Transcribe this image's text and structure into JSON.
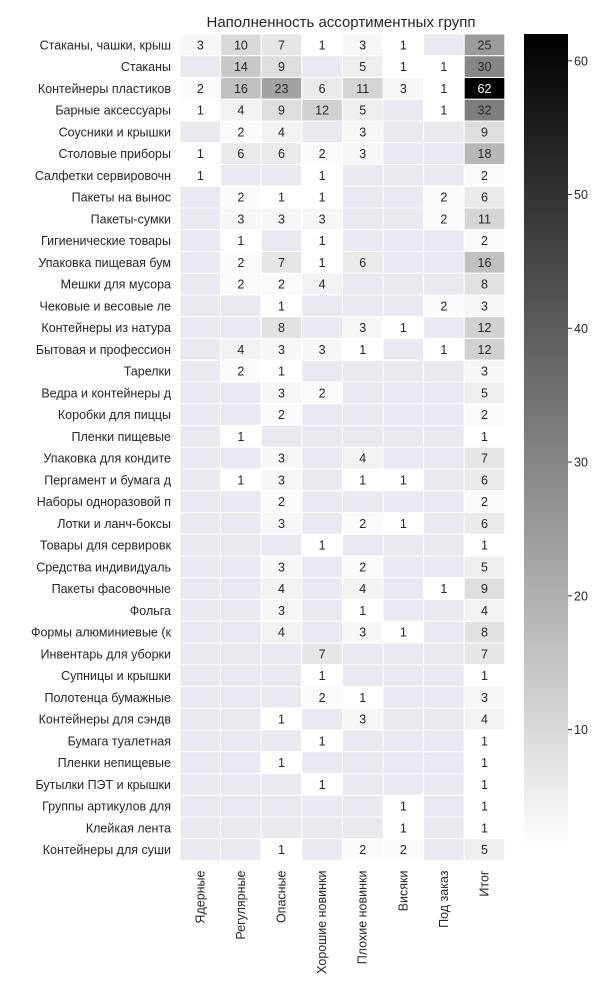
{
  "chart_data": {
    "type": "heatmap",
    "title": "Наполненность ассортиментных групп",
    "columns": [
      "Ядерные",
      "Регулярные",
      "Опасные",
      "Хорошие новинки",
      "Плохие новинки",
      "Висяки",
      "Под заказ",
      "Итог"
    ],
    "rows": [
      "Стаканы, чашки, крыш",
      "Стаканы",
      "Контейнеры пластиков",
      "Барные аксессуары",
      "Соусники и крышки",
      "Столовые приборы",
      "Салфетки сервировочн",
      "Пакеты на вынос",
      "Пакеты-сумки",
      "Гигиенические товары",
      "Упаковка пищевая бум",
      "Мешки для мусора",
      "Чековые и весовые ле",
      "Контейнеры из натура",
      "Бытовая и профессион",
      "Тарелки",
      "Ведра и контейнеры д",
      "Коробки для пиццы",
      "Пленки пищевые",
      "Упаковка для кондите",
      "Пергамент и бумага д",
      "Наборы одноразовой п",
      "Лотки и ланч-боксы",
      "Товары для сервировк",
      "Средства индивидуаль",
      "Пакеты фасовочные",
      "Фольга",
      "Формы алюминиевые (к",
      "Инвентарь для уборки",
      "Супницы и крышки",
      "Полотенца бумажные",
      "Контейнеры для сэндв",
      "Бумага туалетная",
      "Пленки непищевые",
      "Бутылки ПЭТ и крышки",
      "Группы артикулов для",
      "Клейкая лента",
      "Контейнеры для суши"
    ],
    "values": [
      [
        3,
        10,
        7,
        1,
        3,
        1,
        null,
        25
      ],
      [
        null,
        14,
        9,
        null,
        5,
        1,
        1,
        30
      ],
      [
        2,
        16,
        23,
        6,
        11,
        3,
        1,
        62
      ],
      [
        1,
        4,
        9,
        12,
        5,
        null,
        1,
        32
      ],
      [
        null,
        2,
        4,
        null,
        3,
        null,
        null,
        9
      ],
      [
        1,
        6,
        6,
        2,
        3,
        null,
        null,
        18
      ],
      [
        1,
        null,
        null,
        1,
        null,
        null,
        null,
        2
      ],
      [
        null,
        2,
        1,
        1,
        null,
        null,
        2,
        6
      ],
      [
        null,
        3,
        3,
        3,
        null,
        null,
        2,
        11
      ],
      [
        null,
        1,
        null,
        1,
        null,
        null,
        null,
        2
      ],
      [
        null,
        2,
        7,
        1,
        6,
        null,
        null,
        16
      ],
      [
        null,
        2,
        2,
        4,
        null,
        null,
        null,
        8
      ],
      [
        null,
        null,
        1,
        null,
        null,
        null,
        2,
        3
      ],
      [
        null,
        null,
        8,
        null,
        3,
        1,
        null,
        12
      ],
      [
        null,
        4,
        3,
        3,
        1,
        null,
        1,
        12
      ],
      [
        null,
        2,
        1,
        null,
        null,
        null,
        null,
        3
      ],
      [
        null,
        null,
        3,
        2,
        null,
        null,
        null,
        5
      ],
      [
        null,
        null,
        2,
        null,
        null,
        null,
        null,
        2
      ],
      [
        null,
        1,
        null,
        null,
        null,
        null,
        null,
        1
      ],
      [
        null,
        null,
        3,
        null,
        4,
        null,
        null,
        7
      ],
      [
        null,
        1,
        3,
        null,
        1,
        1,
        null,
        6
      ],
      [
        null,
        null,
        2,
        null,
        null,
        null,
        null,
        2
      ],
      [
        null,
        null,
        3,
        null,
        2,
        1,
        null,
        6
      ],
      [
        null,
        null,
        null,
        1,
        null,
        null,
        null,
        1
      ],
      [
        null,
        null,
        3,
        null,
        2,
        null,
        null,
        5
      ],
      [
        null,
        null,
        4,
        null,
        4,
        null,
        1,
        9
      ],
      [
        null,
        null,
        3,
        null,
        1,
        null,
        null,
        4
      ],
      [
        null,
        null,
        4,
        null,
        3,
        1,
        null,
        8
      ],
      [
        null,
        null,
        null,
        7,
        null,
        null,
        null,
        7
      ],
      [
        null,
        null,
        null,
        1,
        null,
        null,
        null,
        1
      ],
      [
        null,
        null,
        null,
        2,
        1,
        null,
        null,
        3
      ],
      [
        null,
        null,
        1,
        null,
        3,
        null,
        null,
        4
      ],
      [
        null,
        null,
        null,
        1,
        null,
        null,
        null,
        1
      ],
      [
        null,
        null,
        1,
        null,
        null,
        null,
        null,
        1
      ],
      [
        null,
        null,
        null,
        1,
        null,
        null,
        null,
        1
      ],
      [
        null,
        null,
        null,
        null,
        null,
        1,
        null,
        1
      ],
      [
        null,
        null,
        null,
        null,
        null,
        1,
        null,
        1
      ],
      [
        null,
        null,
        1,
        null,
        2,
        2,
        null,
        5
      ]
    ],
    "colorbar": {
      "min": 1,
      "max": 62,
      "ticks": [
        10,
        20,
        30,
        40,
        50,
        60
      ]
    },
    "colors": {
      "empty_cell": "#e9e9f2",
      "low": "#ffffff",
      "high": "#000000",
      "grid": "#ffffff",
      "text_dark": "#262626",
      "text_light": "#ffffff"
    }
  }
}
